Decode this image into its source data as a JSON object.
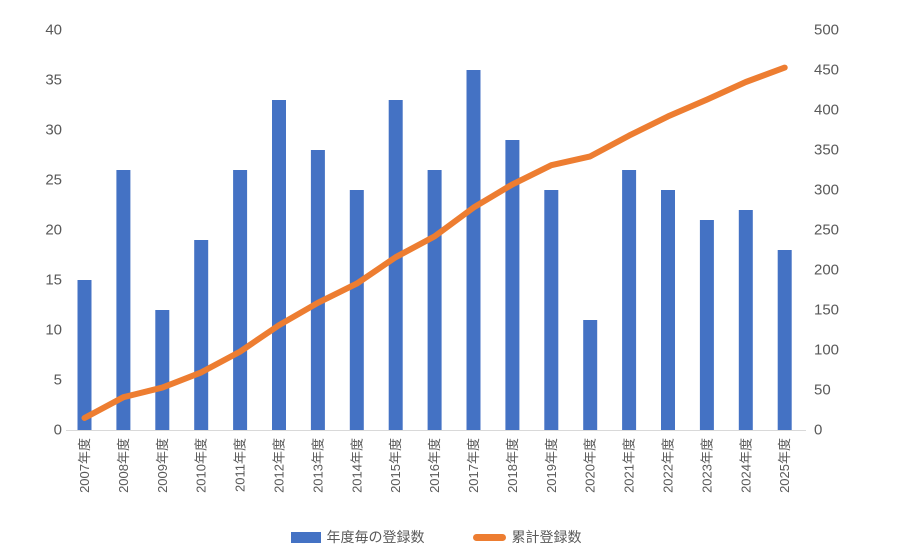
{
  "chart_data": {
    "type": "bar",
    "subtype": "combo-bar-line",
    "title": "",
    "xlabel": "",
    "ylabel_left": "",
    "ylabel_right": "",
    "grid": false,
    "legend_position": "bottom",
    "categories": [
      "2007年度",
      "2008年度",
      "2009年度",
      "2010年度",
      "2011年度",
      "2012年度",
      "2013年度",
      "2014年度",
      "2015年度",
      "2016年度",
      "2017年度",
      "2018年度",
      "2019年度",
      "2020年度",
      "2021年度",
      "2022年度",
      "2023年度",
      "2024年度",
      "2025年度"
    ],
    "series": [
      {
        "name": "年度毎の登録数",
        "type": "bar",
        "axis": "left",
        "color": "#4472C4",
        "values": [
          15,
          26,
          12,
          19,
          26,
          33,
          28,
          24,
          33,
          26,
          36,
          29,
          24,
          11,
          26,
          24,
          21,
          22,
          18
        ]
      },
      {
        "name": "累計登録数",
        "type": "line",
        "axis": "right",
        "color": "#ED7D31",
        "values": [
          15,
          41,
          53,
          72,
          98,
          131,
          159,
          183,
          216,
          242,
          278,
          307,
          331,
          342,
          368,
          392,
          413,
          435,
          453
        ]
      }
    ],
    "left_axis": {
      "min": 0,
      "max": 40,
      "step": 5
    },
    "right_axis": {
      "min": 0,
      "max": 500,
      "step": 50
    }
  },
  "colors": {
    "axis_text": "#595959",
    "axis_line": "#D9D9D9",
    "background": "#FFFFFF"
  }
}
